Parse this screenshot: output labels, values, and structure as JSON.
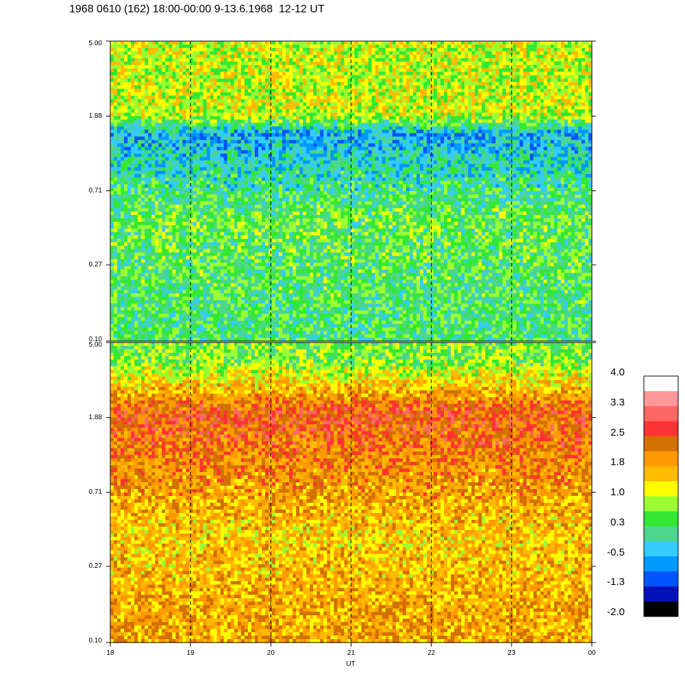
{
  "title": "1968 0610 (162) 18:00-00:00 9-13.6.1968  12-12 UT",
  "chart_data": {
    "type": "heatmap",
    "xlabel": "UT",
    "x_ticks": [
      "18",
      "19",
      "20",
      "21",
      "22",
      "23",
      "00"
    ],
    "x_range": [
      18,
      24
    ],
    "panels": [
      {
        "name": "upper",
        "y_ticks": [
          "5.00",
          "1.88",
          "0.71",
          "0.27",
          "0.10"
        ],
        "y_range": [
          0.1,
          5.0
        ],
        "y_scale": "log",
        "dominant_level": 0.3,
        "bands": [
          {
            "y": 4.6,
            "level": 1.0
          },
          {
            "y": 1.9,
            "level": 1.0
          },
          {
            "y": 1.5,
            "level": -0.5
          },
          {
            "y": 0.5,
            "level": 0.5
          },
          {
            "y": 0.15,
            "level": 0.3
          }
        ]
      },
      {
        "name": "lower",
        "y_ticks": [
          "5.00",
          "1.88",
          "0.71",
          "0.27",
          "0.10"
        ],
        "y_range": [
          0.1,
          5.0
        ],
        "y_scale": "log",
        "dominant_level": 1.8,
        "bands": [
          {
            "y": 4.0,
            "level": 0.6
          },
          {
            "y": 2.0,
            "level": 2.5
          },
          {
            "y": 0.9,
            "level": 2.0
          },
          {
            "y": 0.4,
            "level": 1.5
          },
          {
            "y": 0.15,
            "level": 1.8
          }
        ]
      }
    ],
    "hour_gridlines": [
      19,
      20,
      21,
      22,
      23
    ],
    "colorbar": {
      "labels": [
        "4.0",
        "3.3",
        "2.5",
        "1.8",
        "1.0",
        "0.3",
        "-0.5",
        "-1.3",
        "-2.0"
      ],
      "range": [
        -2.0,
        4.0
      ],
      "colors": [
        "#ffffff",
        "#ff9999",
        "#ff6666",
        "#ff3333",
        "#d27000",
        "#ff9900",
        "#ffbb00",
        "#ffff00",
        "#99ff33",
        "#33e833",
        "#4cd68e",
        "#33ccff",
        "#0099ff",
        "#0055ff",
        "#0011bb",
        "#000000"
      ]
    }
  }
}
